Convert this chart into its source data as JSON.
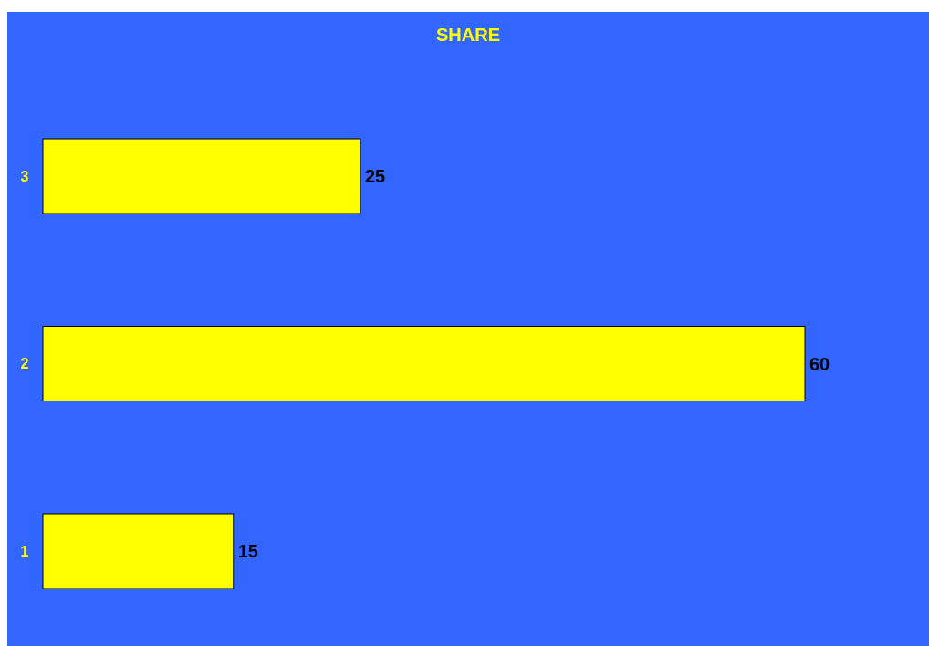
{
  "chart_data": {
    "type": "bar",
    "orientation": "horizontal",
    "title": "SHARE",
    "categories": [
      "3",
      "2",
      "1"
    ],
    "values": [
      25,
      60,
      15
    ],
    "color": "#ffff00",
    "data_labels": true
  }
}
